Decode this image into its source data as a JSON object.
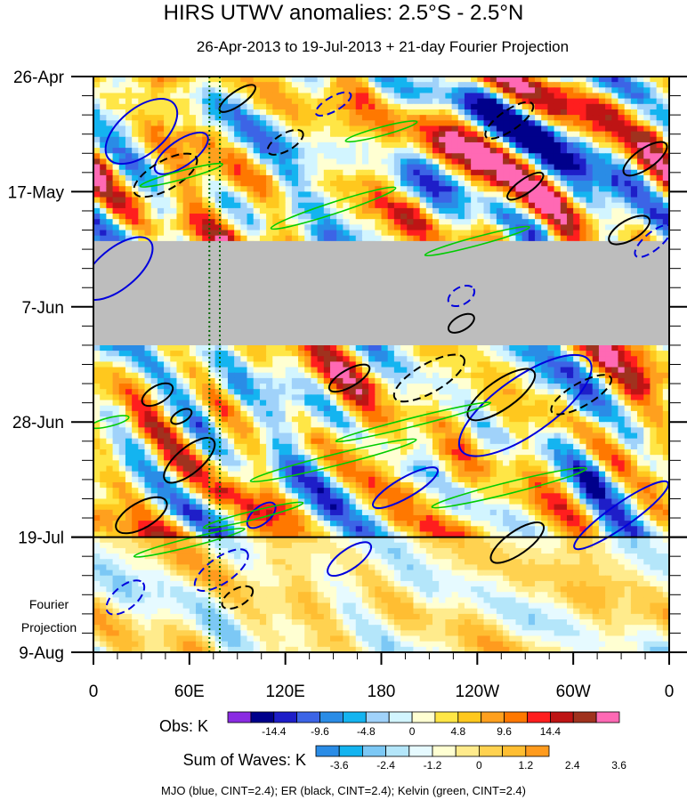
{
  "chart_data": {
    "type": "heatmap",
    "title": "HIRS UTWV anomalies: 2.5°S - 2.5°N",
    "subtitle": "26-Apr-2013 to 19-Jul-2013 + 21-day Fourier Projection",
    "x_tick_labels": [
      "0",
      "60E",
      "120E",
      "180",
      "120W",
      "60W",
      "0"
    ],
    "x_tick_values_deg": [
      0,
      60,
      120,
      180,
      240,
      300,
      360
    ],
    "y_tick_labels": [
      "26-Apr",
      "17-May",
      "7-Jun",
      "28-Jun",
      "19-Jul",
      "9-Aug"
    ],
    "y_tick_values_day": [
      0,
      21,
      42,
      63,
      84,
      105
    ],
    "observation_end_day": 84,
    "projection_label": [
      "Fourier",
      "Projection"
    ],
    "missing_data_band_days": [
      30,
      49
    ],
    "vertical_lines_deg": [
      72.5,
      79
    ],
    "obs_colorbar": {
      "label": "Obs: K",
      "tick_labels": [
        "-14.4",
        "-9.6",
        "-4.8",
        "0",
        "4.8",
        "9.6",
        "14.4"
      ],
      "colors": [
        "#8a2be2",
        "#00008b",
        "#1e1ec8",
        "#3c64e6",
        "#2a8ce6",
        "#14b4f0",
        "#a0d2fa",
        "#d2f5ff",
        "#ffffd2",
        "#ffe646",
        "#ffc81e",
        "#ffa01e",
        "#ff7800",
        "#ff1e1e",
        "#be1414",
        "#a0321e",
        "#ff69b4"
      ]
    },
    "waves_colorbar": {
      "label": "Sum of Waves: K",
      "tick_labels": [
        "-3.6",
        "-2.4",
        "-1.2",
        "0",
        "1.2",
        "2.4",
        "3.6"
      ],
      "colors": [
        "#2a8ce6",
        "#14b4f0",
        "#7cc8f5",
        "#b4e6fa",
        "#e6faff",
        "#ffffd2",
        "#ffeb8c",
        "#ffd250",
        "#ffbe32",
        "#ff9b1e"
      ]
    },
    "contour_legend": "MJO (blue, CINT=2.4); ER (black, CINT=2.4); Kelvin (green, CINT=2.4)",
    "series": [
      {
        "name": "MJO",
        "color": "#0000dd",
        "cint": 2.4
      },
      {
        "name": "ER",
        "color": "#000000",
        "cint": 2.4
      },
      {
        "name": "Kelvin",
        "color": "#00cc00",
        "cint": 2.4
      }
    ],
    "colors": {
      "missing": "#bdbdbd",
      "vline": "#006400"
    }
  }
}
